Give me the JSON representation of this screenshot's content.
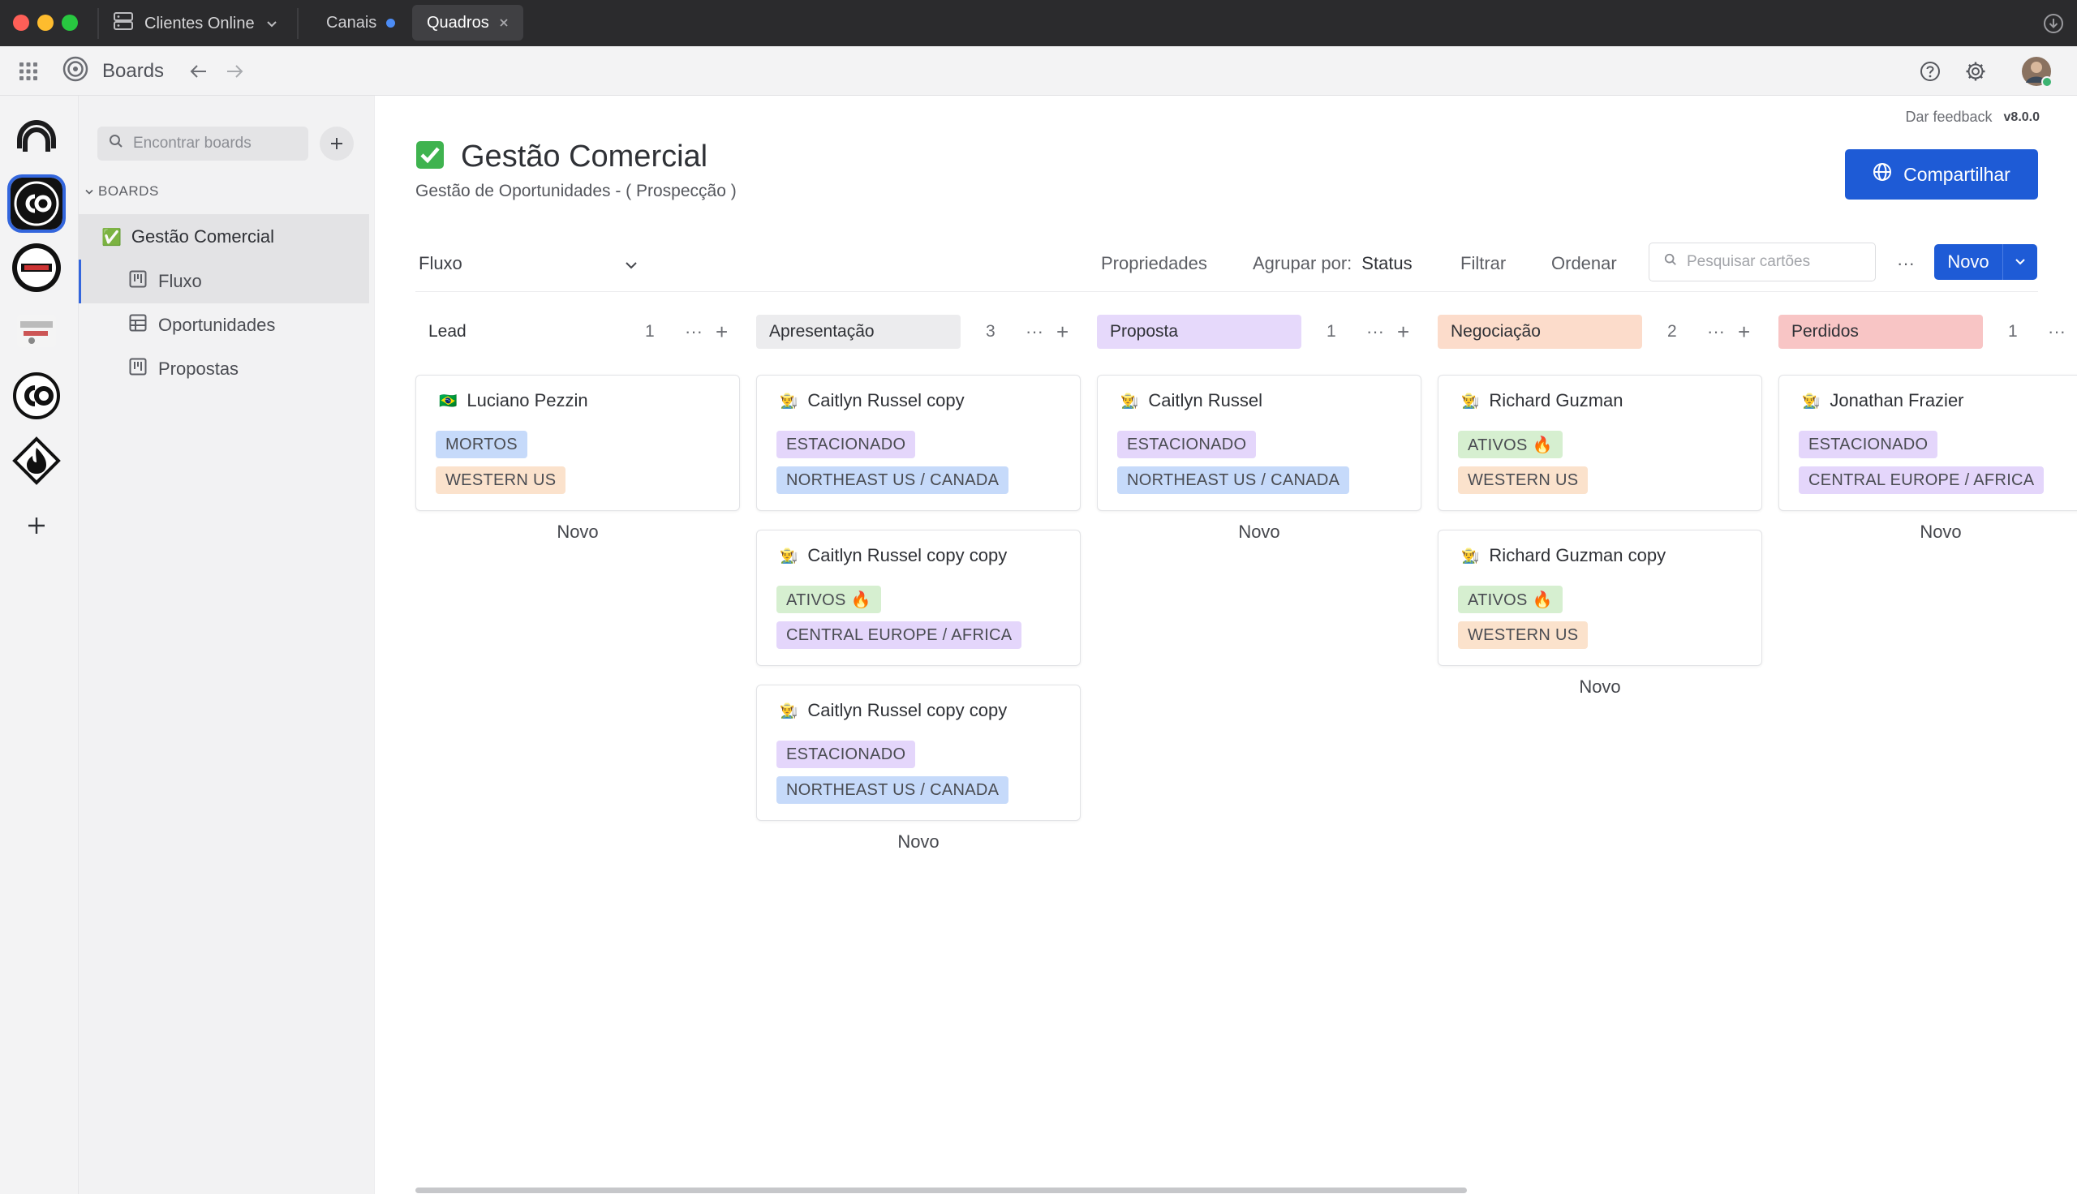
{
  "titlebar": {
    "workspace": "Clientes Online",
    "tabs": [
      {
        "label": "Canais"
      },
      {
        "label": "Quadros"
      }
    ]
  },
  "globalbar": {
    "app_title": "Boards"
  },
  "sidebar": {
    "search_placeholder": "Encontrar boards",
    "section_label": "BOARDS",
    "board": {
      "emoji": "✅",
      "label": "Gestão Comercial"
    },
    "views": [
      {
        "label": "Fluxo",
        "icon": "board-view-icon"
      },
      {
        "label": "Oportunidades",
        "icon": "table-view-icon"
      },
      {
        "label": "Propostas",
        "icon": "board-view-icon"
      }
    ]
  },
  "main": {
    "feedback": "Dar feedback",
    "version": "v8.0.0",
    "share_label": "Compartilhar",
    "title_emoji": "✅",
    "title": "Gestão Comercial",
    "description": "Gestão de Oportunidades - ( Prospecção )",
    "view_name": "Fluxo",
    "toolbar": {
      "properties": "Propriedades",
      "group_by": "Agrupar por:",
      "group_value": "Status",
      "filter": "Filtrar",
      "sort": "Ordenar",
      "search_placeholder": "Pesquisar cartões",
      "more": "···",
      "new": "Novo"
    }
  },
  "columns": [
    {
      "name": "Lead",
      "count": "1",
      "color": "#ffffff",
      "novo": "Novo",
      "cards": [
        {
          "emoji": "🇧🇷",
          "title": "Luciano Pezzin",
          "tags": [
            {
              "text": "MORTOS",
              "color": "#c6dafa"
            },
            {
              "text": "WESTERN US",
              "color": "#fbe2cc"
            }
          ]
        }
      ]
    },
    {
      "name": "Apresentação",
      "count": "3",
      "color": "#ececee",
      "novo": "Novo",
      "cards": [
        {
          "emoji": "👨‍🌾",
          "title": "Caitlyn Russel copy",
          "tags": [
            {
              "text": "ESTACIONADO",
              "color": "#e4d6fb"
            },
            {
              "text": "NORTHEAST US / CANADA",
              "color": "#c6dafa"
            }
          ]
        },
        {
          "emoji": "👨‍🌾",
          "title": "Caitlyn Russel copy copy",
          "tags": [
            {
              "text": "ATIVOS 🔥",
              "color": "#d6efd0"
            },
            {
              "text": "CENTRAL EUROPE / AFRICA",
              "color": "#e4d6fb"
            }
          ]
        },
        {
          "emoji": "👨‍🌾",
          "title": "Caitlyn Russel copy copy",
          "tags": [
            {
              "text": "ESTACIONADO",
              "color": "#e4d6fb"
            },
            {
              "text": "NORTHEAST US / CANADA",
              "color": "#c6dafa"
            }
          ]
        }
      ]
    },
    {
      "name": "Proposta",
      "count": "1",
      "color": "#e6d9fb",
      "novo": "Novo",
      "cards": [
        {
          "emoji": "👨‍🌾",
          "title": "Caitlyn Russel",
          "tags": [
            {
              "text": "ESTACIONADO",
              "color": "#e4d6fb"
            },
            {
              "text": "NORTHEAST US / CANADA",
              "color": "#c6dafa"
            }
          ]
        }
      ]
    },
    {
      "name": "Negociação",
      "count": "2",
      "color": "#fcdccb",
      "novo": "Novo",
      "cards": [
        {
          "emoji": "👨‍🌾",
          "title": "Richard Guzman",
          "tags": [
            {
              "text": "ATIVOS 🔥",
              "color": "#d6efd0"
            },
            {
              "text": "WESTERN US",
              "color": "#fbe2cc"
            }
          ]
        },
        {
          "emoji": "👨‍🌾",
          "title": "Richard Guzman copy",
          "tags": [
            {
              "text": "ATIVOS 🔥",
              "color": "#d6efd0"
            },
            {
              "text": "WESTERN US",
              "color": "#fbe2cc"
            }
          ]
        }
      ]
    },
    {
      "name": "Perdidos",
      "count": "1",
      "color": "#f8c5c5",
      "novo": "Novo",
      "cards": [
        {
          "emoji": "👨‍🌾",
          "title": "Jonathan Frazier",
          "tags": [
            {
              "text": "ESTACIONADO",
              "color": "#e4d6fb"
            },
            {
              "text": "CENTRAL EUROPE / AFRICA",
              "color": "#e4d6fb"
            }
          ]
        }
      ]
    }
  ],
  "colors": {
    "accent": "#1e5bd6",
    "titlebar": "#2b2b2d"
  }
}
